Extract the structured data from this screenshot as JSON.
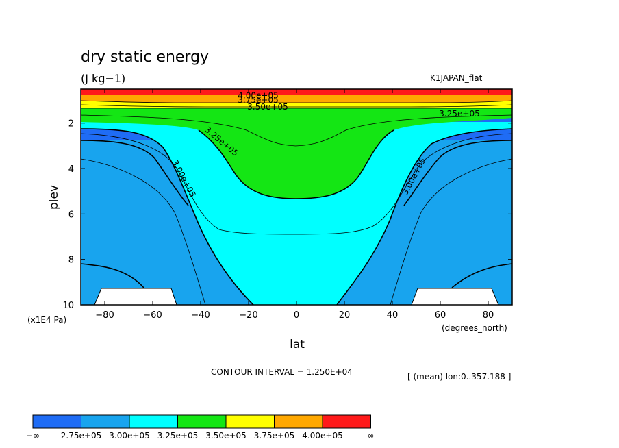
{
  "chart_data": {
    "type": "heatmap",
    "title": "dry static energy",
    "units_label": "(J kg−1)",
    "dataset_label": "K1JAPAN_flat",
    "xlabel": "lat",
    "x_units_label": "(degrees_north)",
    "ylabel": "plev",
    "y_units_label": "(x1E4 Pa)",
    "x_range": [
      -90,
      90
    ],
    "y_range": [
      0.5,
      10
    ],
    "y_inverted": true,
    "x_ticks": [
      "−80",
      "−60",
      "−40",
      "−20",
      "0",
      "20",
      "40",
      "60",
      "80"
    ],
    "x_tick_values": [
      -80,
      -60,
      -40,
      -20,
      0,
      20,
      40,
      60,
      80
    ],
    "y_ticks": [
      "2",
      "4",
      "6",
      "8",
      "10"
    ],
    "y_tick_values": [
      2,
      4,
      6,
      8,
      10
    ],
    "contour_interval_text": "CONTOUR INTERVAL = 1.250E+04",
    "mean_note": "[ (mean) lon:0..357.188 ]",
    "colorbar_labels": [
      "−∞",
      "2.75e+05",
      "3.00e+05",
      "3.25e+05",
      "3.50e+05",
      "3.75e+05",
      "4.00e+05",
      "∞"
    ],
    "colorbar_colors": [
      "#1f6cf5",
      "#18a4ee",
      "#00ffff",
      "#14e614",
      "#ffff00",
      "#ffa800",
      "#ff1a1a"
    ],
    "contour_labels": [
      {
        "text": "4.00e+05",
        "lat": -16,
        "plev": 0.9
      },
      {
        "text": "3.75e+05",
        "lat": -16,
        "plev": 1.1
      },
      {
        "text": "3.50e+05",
        "lat": -12,
        "plev": 1.4
      },
      {
        "text": "3.25e+05",
        "lat": 68,
        "plev": 1.7
      },
      {
        "text": "3.25e+05",
        "lat": -32,
        "plev": 2.9
      },
      {
        "text": "3.00e+05",
        "lat": -48,
        "plev": 4.5
      },
      {
        "text": "3.00e+05",
        "lat": 50,
        "plev": 4.4
      }
    ],
    "levels": [
      275000.0,
      300000.0,
      325000.0,
      350000.0,
      375000.0,
      400000.0
    ],
    "grid": false
  }
}
